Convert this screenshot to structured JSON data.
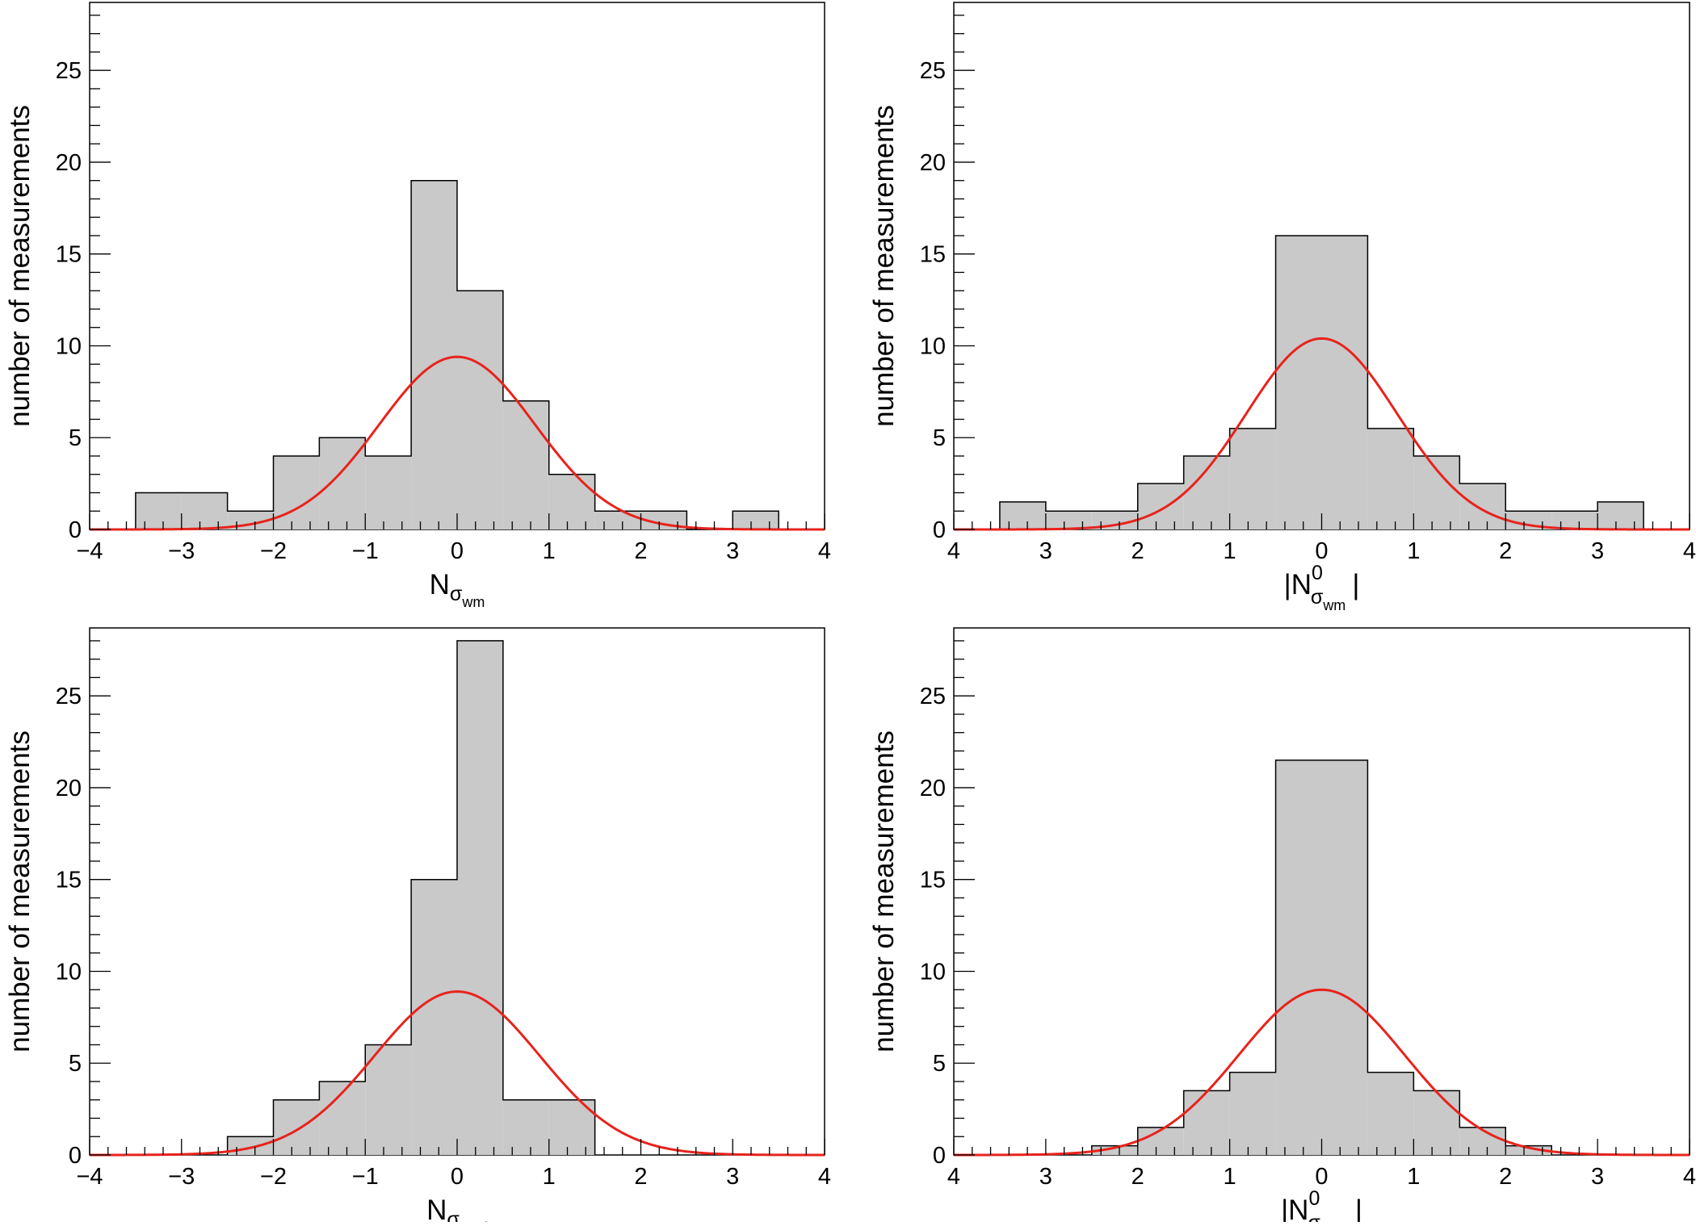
{
  "chart_data": [
    {
      "type": "bar",
      "panel": "top-left",
      "ylabel": "number of measurements",
      "xlabel_main": "N",
      "xlabel_sub": "σ",
      "xlabel_subsub": "wm",
      "abs_style": false,
      "xlim": [
        -4,
        4
      ],
      "ylim": [
        0,
        28.7
      ],
      "xtick_values": [
        -4,
        -3,
        -2,
        -1,
        0,
        1,
        2,
        3,
        4
      ],
      "xtick_labels": [
        "−4",
        "−3",
        "−2",
        "−1",
        "0",
        "1",
        "2",
        "3",
        "4"
      ],
      "ytick_values": [
        0,
        5,
        10,
        15,
        20,
        25
      ],
      "ytick_labels": [
        "0",
        "5",
        "10",
        "15",
        "20",
        "25"
      ],
      "bin_edges": [
        -3.5,
        -3.0,
        -2.5,
        -2.0,
        -1.5,
        -1.0,
        -0.5,
        0.0,
        0.5,
        1.0,
        1.5,
        2.0,
        2.5,
        3.0,
        3.5
      ],
      "values": [
        2,
        2,
        1,
        4,
        5,
        4,
        19,
        13,
        7,
        3,
        1,
        1,
        0,
        1
      ],
      "gaussian_fit": {
        "amplitude": 9.4,
        "mean": 0,
        "sigma": 0.85
      },
      "colors": {
        "fill": "#c9c9c9",
        "edge": "#000000",
        "fit": "#e8231c"
      }
    },
    {
      "type": "bar",
      "panel": "top-right",
      "ylabel": "number of measurements",
      "xlabel_main": "N",
      "xlabel_sub": "σ",
      "xlabel_subsub": "wm",
      "xlabel_sup": "0",
      "abs_style": true,
      "xlim": [
        -4,
        4
      ],
      "ylim": [
        0,
        28.7
      ],
      "xtick_values": [
        -4,
        -3,
        -2,
        -1,
        0,
        1,
        2,
        3,
        4
      ],
      "xtick_labels": [
        "4",
        "3",
        "2",
        "1",
        "0",
        "1",
        "2",
        "3",
        "4"
      ],
      "ytick_values": [
        0,
        5,
        10,
        15,
        20,
        25
      ],
      "ytick_labels": [
        "0",
        "5",
        "10",
        "15",
        "20",
        "25"
      ],
      "bin_edges": [
        -3.5,
        -3.0,
        -2.5,
        -2.0,
        -1.5,
        -1.0,
        -0.5,
        0.0,
        0.5,
        1.0,
        1.5,
        2.0,
        2.5,
        3.0,
        3.5
      ],
      "values": [
        1.5,
        1,
        1,
        2.5,
        4,
        5.5,
        16,
        16,
        5.5,
        4,
        2.5,
        1,
        1,
        1.5
      ],
      "gaussian_fit": {
        "amplitude": 10.4,
        "mean": 0,
        "sigma": 0.82
      },
      "colors": {
        "fill": "#c9c9c9",
        "edge": "#000000",
        "fit": "#e8231c"
      }
    },
    {
      "type": "bar",
      "panel": "bottom-left",
      "ylabel": "number of measurements",
      "xlabel_main": "N",
      "xlabel_sub": "σ",
      "xlabel_subsub": "med",
      "abs_style": false,
      "xlim": [
        -4,
        4
      ],
      "ylim": [
        0,
        28.7
      ],
      "xtick_values": [
        -4,
        -3,
        -2,
        -1,
        0,
        1,
        2,
        3,
        4
      ],
      "xtick_labels": [
        "−4",
        "−3",
        "−2",
        "−1",
        "0",
        "1",
        "2",
        "3",
        "4"
      ],
      "ytick_values": [
        0,
        5,
        10,
        15,
        20,
        25
      ],
      "ytick_labels": [
        "0",
        "5",
        "10",
        "15",
        "20",
        "25"
      ],
      "bin_edges": [
        -2.5,
        -2.0,
        -1.5,
        -1.0,
        -0.5,
        0.0,
        0.5,
        1.0,
        1.5
      ],
      "values": [
        1,
        3,
        4,
        6,
        15,
        28,
        3,
        3
      ],
      "gaussian_fit": {
        "amplitude": 8.9,
        "mean": 0,
        "sigma": 0.9
      },
      "colors": {
        "fill": "#c9c9c9",
        "edge": "#000000",
        "fit": "#e8231c"
      }
    },
    {
      "type": "bar",
      "panel": "bottom-right",
      "ylabel": "number of measurements",
      "xlabel_main": "N",
      "xlabel_sub": "σ",
      "xlabel_subsub": "med",
      "xlabel_sup": "0",
      "abs_style": true,
      "xlim": [
        -4,
        4
      ],
      "ylim": [
        0,
        28.7
      ],
      "xtick_values": [
        -4,
        -3,
        -2,
        -1,
        0,
        1,
        2,
        3,
        4
      ],
      "xtick_labels": [
        "4",
        "3",
        "2",
        "1",
        "0",
        "1",
        "2",
        "3",
        "4"
      ],
      "ytick_values": [
        0,
        5,
        10,
        15,
        20,
        25
      ],
      "ytick_labels": [
        "0",
        "5",
        "10",
        "15",
        "20",
        "25"
      ],
      "bin_edges": [
        -2.5,
        -2.0,
        -1.5,
        -1.0,
        -0.5,
        0.0,
        0.5,
        1.0,
        1.5,
        2.0,
        2.5
      ],
      "values": [
        0.5,
        1.5,
        3.5,
        4.5,
        21.5,
        21.5,
        4.5,
        3.5,
        1.5,
        0.5
      ],
      "gaussian_fit": {
        "amplitude": 9.0,
        "mean": 0,
        "sigma": 0.9
      },
      "colors": {
        "fill": "#c9c9c9",
        "edge": "#000000",
        "fit": "#e8231c"
      }
    }
  ]
}
